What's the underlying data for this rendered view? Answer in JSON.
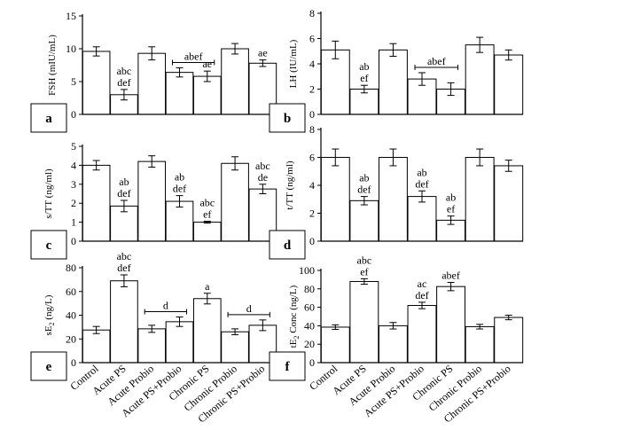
{
  "categories": [
    "Control",
    "Acute PS",
    "Acute Probio",
    "Acute PS+Probio",
    "Chronic PS",
    "Chronic Probio",
    "Chronic PS+Probio"
  ],
  "chart_data": [
    {
      "panel": "a",
      "type": "bar",
      "ylabel": "FSH (mIU/mL)",
      "ylim": [
        0,
        15
      ],
      "yticks": [
        0,
        5,
        10,
        15
      ],
      "values": [
        9.6,
        3.0,
        9.3,
        6.4,
        5.8,
        10.0,
        7.8
      ],
      "errors": [
        0.7,
        0.8,
        1.0,
        0.7,
        0.8,
        0.8,
        0.5
      ],
      "annotations": [
        {
          "bar": 1,
          "lines": [
            "abc",
            "def"
          ]
        },
        {
          "bar": 4,
          "lines": [
            "ae"
          ]
        },
        {
          "bar": 6,
          "lines": [
            "ae"
          ]
        }
      ],
      "brackets": [
        {
          "from": 3,
          "to": 4,
          "label": "abef"
        }
      ]
    },
    {
      "panel": "b",
      "type": "bar",
      "ylabel": "LH (IU/mL)",
      "ylim": [
        0,
        8
      ],
      "yticks": [
        0,
        2,
        4,
        6,
        8
      ],
      "values": [
        5.1,
        2.0,
        5.1,
        2.8,
        2.0,
        5.5,
        4.7
      ],
      "errors": [
        0.7,
        0.3,
        0.5,
        0.5,
        0.5,
        0.6,
        0.4
      ],
      "annotations": [
        {
          "bar": 1,
          "lines": [
            "ab",
            "ef"
          ]
        }
      ],
      "brackets": [
        {
          "from": 3,
          "to": 4,
          "label": "abef"
        }
      ]
    },
    {
      "panel": "c",
      "type": "bar",
      "ylabel": "s/TT (ng/ml)",
      "ylim": [
        0,
        5
      ],
      "yticks": [
        0,
        1,
        2,
        3,
        4,
        5
      ],
      "values": [
        4.0,
        1.85,
        4.2,
        2.1,
        1.0,
        4.1,
        2.75
      ],
      "errors": [
        0.25,
        0.3,
        0.3,
        0.3,
        0.05,
        0.35,
        0.25
      ],
      "annotations": [
        {
          "bar": 1,
          "lines": [
            "ab",
            "def"
          ]
        },
        {
          "bar": 3,
          "lines": [
            "ab",
            "def"
          ]
        },
        {
          "bar": 4,
          "lines": [
            "abc",
            "ef"
          ]
        },
        {
          "bar": 6,
          "lines": [
            "abc",
            "de"
          ]
        }
      ],
      "brackets": []
    },
    {
      "panel": "d",
      "type": "bar",
      "ylabel": "t/TT (ng/ml)",
      "ylim": [
        0,
        8
      ],
      "yticks": [
        0,
        2,
        4,
        6,
        8
      ],
      "values": [
        6.0,
        2.9,
        6.0,
        3.2,
        1.5,
        6.0,
        5.4
      ],
      "errors": [
        0.6,
        0.3,
        0.6,
        0.4,
        0.3,
        0.6,
        0.4
      ],
      "annotations": [
        {
          "bar": 1,
          "lines": [
            "ab",
            "def"
          ]
        },
        {
          "bar": 3,
          "lines": [
            "ab",
            "def"
          ]
        },
        {
          "bar": 4,
          "lines": [
            "ab",
            "ef"
          ]
        }
      ],
      "brackets": []
    },
    {
      "panel": "e",
      "type": "bar",
      "ylabel": "sE2 (ng/L)",
      "ylim": [
        0,
        80
      ],
      "yticks": [
        0,
        20,
        40,
        60,
        80
      ],
      "values": [
        27.5,
        69.0,
        28.5,
        34.5,
        54.0,
        26.0,
        31.5
      ],
      "errors": [
        3.0,
        5.0,
        3.0,
        4.0,
        4.5,
        2.5,
        4.5
      ],
      "annotations": [
        {
          "bar": 1,
          "lines": [
            "abc",
            "def"
          ]
        },
        {
          "bar": 4,
          "lines": [
            "a"
          ]
        }
      ],
      "brackets": [
        {
          "from": 2,
          "to": 3,
          "label": "d"
        },
        {
          "from": 5,
          "to": 6,
          "label": "d"
        }
      ]
    },
    {
      "panel": "f",
      "type": "bar",
      "ylabel": "tE2 Conc (ng/L)",
      "ylim": [
        0,
        100
      ],
      "yticks": [
        0,
        20,
        40,
        60,
        80,
        100
      ],
      "values": [
        38.5,
        88.0,
        40.0,
        62.0,
        82.5,
        39.0,
        49.0
      ],
      "errors": [
        2.5,
        3.0,
        3.5,
        3.5,
        4.5,
        2.5,
        2.5
      ],
      "annotations": [
        {
          "bar": 1,
          "lines": [
            "abc",
            "ef"
          ]
        },
        {
          "bar": 3,
          "lines": [
            "ac",
            "def"
          ]
        },
        {
          "bar": 4,
          "lines": [
            "abef"
          ]
        }
      ],
      "brackets": []
    }
  ]
}
